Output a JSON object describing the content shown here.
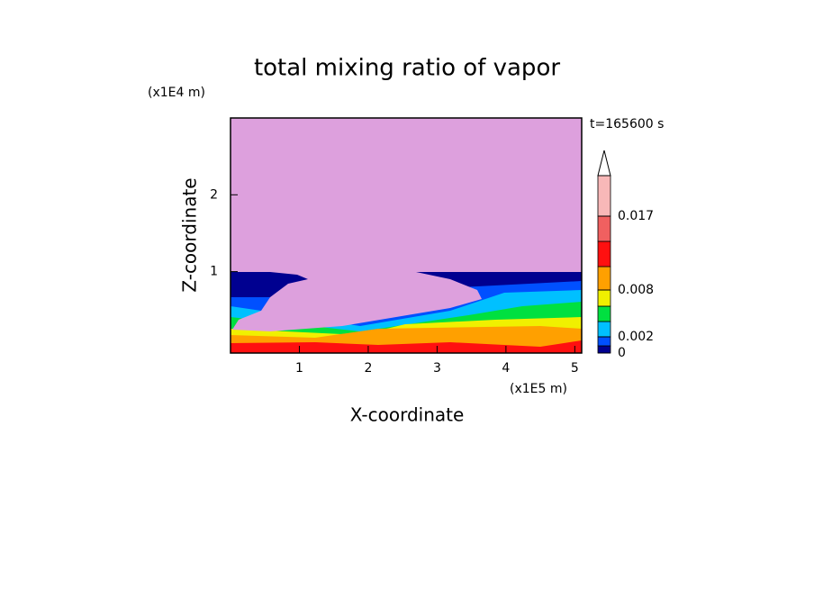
{
  "chart_data": {
    "type": "contour",
    "title": "total mixing ratio of vapor",
    "x_label": "X-coordinate",
    "x_unit": "(x1E5 m)",
    "y_label": "Z-coordinate",
    "y_unit": "(x1E4 m)",
    "time_label": "t=165600 s",
    "xlim": [
      0,
      5.1
    ],
    "xticks": [
      1,
      2,
      3,
      4,
      5
    ],
    "ylim": [
      -0.06,
      3.0
    ],
    "yticks": [
      1,
      2
    ],
    "background_color": "#dda0dd",
    "colors": [
      "#000090",
      "#0050ff",
      "#00c0ff",
      "#00e040",
      "#f0f000",
      "#ffa000",
      "#ff1010",
      "#f06060",
      "#f8b8b8"
    ],
    "colorbar_ticks": [
      0,
      0.002,
      0.008,
      0.017
    ]
  }
}
